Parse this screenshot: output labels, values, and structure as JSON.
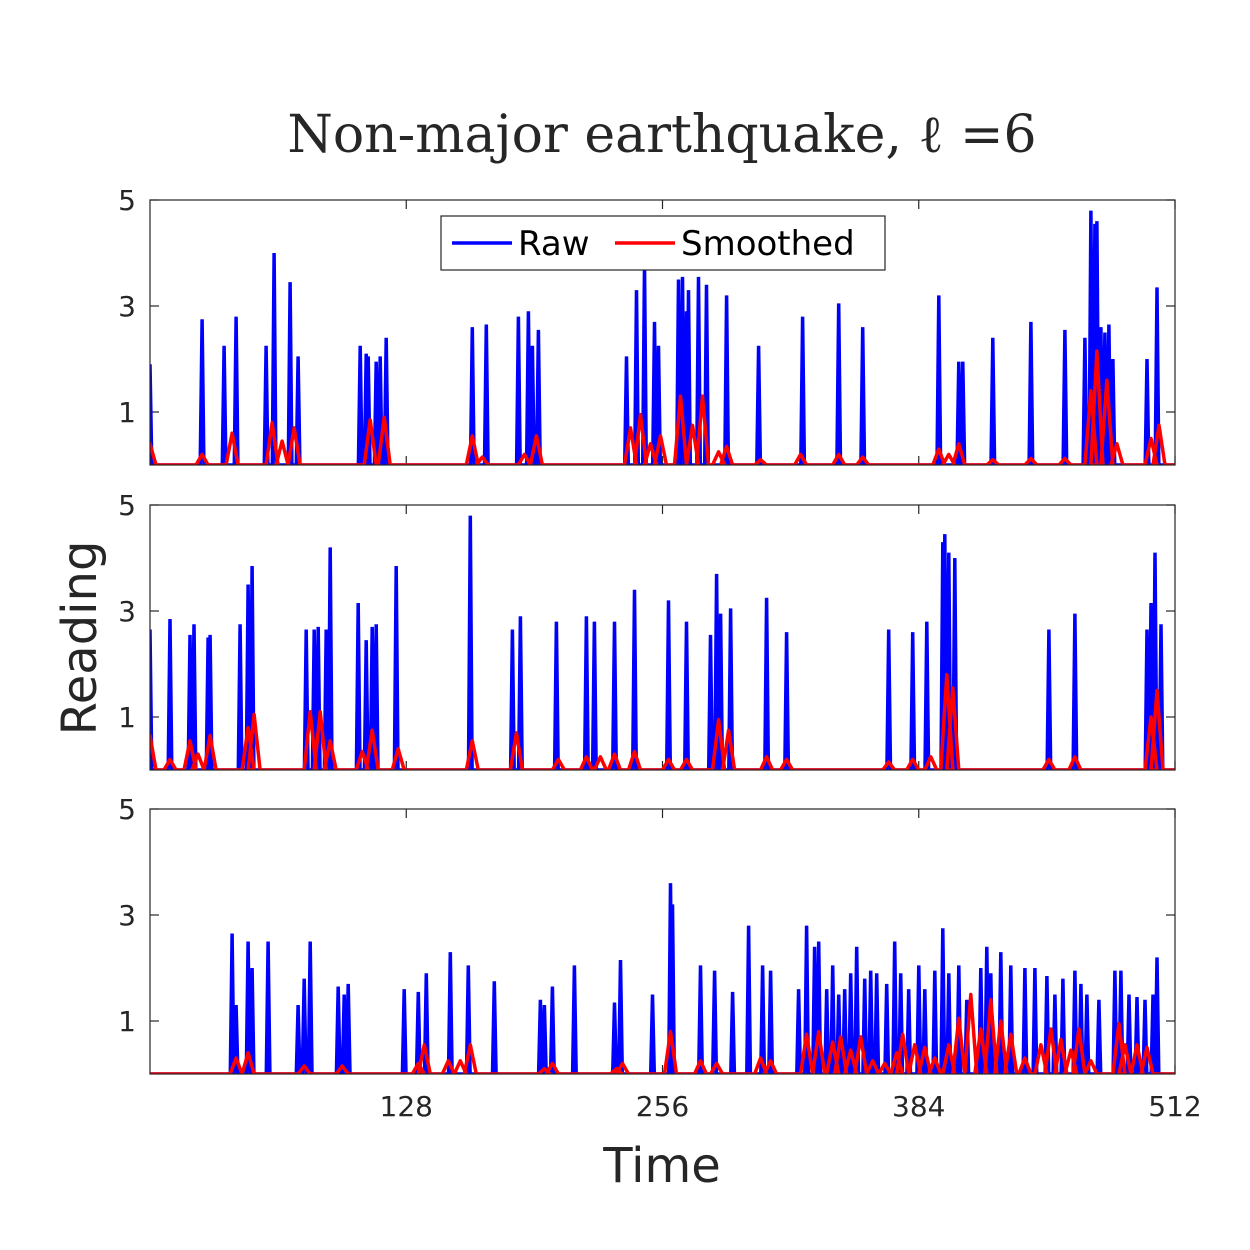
{
  "chart_data": {
    "type": "line",
    "title": "Non-major earthquake, ℓ =6",
    "xlabel": "Time",
    "ylabel": "Reading",
    "xlim": [
      0,
      512
    ],
    "ylim": [
      0,
      5
    ],
    "x_ticks": [
      128,
      256,
      384,
      512
    ],
    "y_ticks": [
      1,
      3,
      5
    ],
    "legend": {
      "placement": "top-center",
      "entries": [
        "Raw",
        "Smoothed"
      ]
    },
    "colors": {
      "Raw": "#0000ff",
      "Smoothed": "#ff0000"
    },
    "subplots": [
      {
        "name": "panel-1",
        "raw_spikes": [
          [
            0,
            1.9
          ],
          [
            26,
            2.75
          ],
          [
            37,
            2.25
          ],
          [
            43,
            2.8
          ],
          [
            58,
            2.25
          ],
          [
            62,
            4.0
          ],
          [
            70,
            3.45
          ],
          [
            74,
            2.05
          ],
          [
            105,
            2.25
          ],
          [
            108,
            2.1
          ],
          [
            109,
            2.05
          ],
          [
            113,
            1.95
          ],
          [
            115,
            2.05
          ],
          [
            118,
            2.4
          ],
          [
            161,
            2.6
          ],
          [
            168,
            2.65
          ],
          [
            184,
            2.8
          ],
          [
            189,
            2.9
          ],
          [
            191,
            2.25
          ],
          [
            194,
            2.55
          ],
          [
            238,
            2.05
          ],
          [
            243,
            3.3
          ],
          [
            247,
            3.8
          ],
          [
            252,
            2.7
          ],
          [
            254,
            2.25
          ],
          [
            264,
            3.5
          ],
          [
            266,
            3.55
          ],
          [
            268,
            2.9
          ],
          [
            269,
            3.3
          ],
          [
            274,
            3.55
          ],
          [
            278,
            3.4
          ],
          [
            288,
            3.2
          ],
          [
            304,
            2.25
          ],
          [
            326,
            2.8
          ],
          [
            344,
            3.05
          ],
          [
            356,
            2.6
          ],
          [
            394,
            3.2
          ],
          [
            404,
            1.95
          ],
          [
            406,
            1.95
          ],
          [
            421,
            2.4
          ],
          [
            440,
            2.7
          ],
          [
            457,
            2.55
          ],
          [
            467,
            2.4
          ],
          [
            470,
            4.8
          ],
          [
            472,
            4.55
          ],
          [
            473,
            4.6
          ],
          [
            475,
            2.6
          ],
          [
            477,
            2.5
          ],
          [
            479,
            2.65
          ],
          [
            481,
            2.0
          ],
          [
            498,
            2.0
          ],
          [
            503,
            3.35
          ]
        ],
        "smoothed_bumps": [
          [
            0,
            0.4
          ],
          [
            26,
            0.2
          ],
          [
            41,
            0.6
          ],
          [
            61,
            0.8
          ],
          [
            66,
            0.45
          ],
          [
            72,
            0.7
          ],
          [
            110,
            0.85
          ],
          [
            117,
            0.9
          ],
          [
            161,
            0.55
          ],
          [
            166,
            0.15
          ],
          [
            187,
            0.2
          ],
          [
            193,
            0.55
          ],
          [
            240,
            0.7
          ],
          [
            245,
            0.95
          ],
          [
            250,
            0.4
          ],
          [
            255,
            0.55
          ],
          [
            265,
            1.3
          ],
          [
            271,
            0.75
          ],
          [
            276,
            1.3
          ],
          [
            284,
            0.25
          ],
          [
            288,
            0.35
          ],
          [
            305,
            0.1
          ],
          [
            325,
            0.2
          ],
          [
            344,
            0.2
          ],
          [
            356,
            0.15
          ],
          [
            394,
            0.3
          ],
          [
            399,
            0.2
          ],
          [
            404,
            0.4
          ],
          [
            421,
            0.1
          ],
          [
            440,
            0.12
          ],
          [
            457,
            0.12
          ],
          [
            470,
            1.4
          ],
          [
            473,
            2.15
          ],
          [
            478,
            1.6
          ],
          [
            483,
            0.4
          ],
          [
            500,
            0.5
          ],
          [
            504,
            0.75
          ]
        ]
      },
      {
        "name": "panel-2",
        "raw_spikes": [
          [
            0,
            2.65
          ],
          [
            10,
            2.85
          ],
          [
            20,
            2.55
          ],
          [
            22,
            2.75
          ],
          [
            29,
            2.5
          ],
          [
            30,
            2.55
          ],
          [
            45,
            2.75
          ],
          [
            49,
            3.5
          ],
          [
            51,
            3.85
          ],
          [
            78,
            2.65
          ],
          [
            82,
            2.65
          ],
          [
            84,
            2.7
          ],
          [
            88,
            2.65
          ],
          [
            90,
            4.2
          ],
          [
            104,
            3.15
          ],
          [
            108,
            2.45
          ],
          [
            111,
            2.7
          ],
          [
            113,
            2.75
          ],
          [
            123,
            3.85
          ],
          [
            160,
            4.8
          ],
          [
            181,
            2.65
          ],
          [
            185,
            2.9
          ],
          [
            203,
            2.8
          ],
          [
            218,
            2.9
          ],
          [
            222,
            2.8
          ],
          [
            232,
            2.8
          ],
          [
            242,
            3.4
          ],
          [
            259,
            3.2
          ],
          [
            268,
            2.8
          ],
          [
            280,
            2.55
          ],
          [
            283,
            3.7
          ],
          [
            285,
            2.95
          ],
          [
            290,
            3.05
          ],
          [
            308,
            3.25
          ],
          [
            318,
            2.6
          ],
          [
            369,
            2.65
          ],
          [
            381,
            2.6
          ],
          [
            388,
            2.8
          ],
          [
            396,
            4.3
          ],
          [
            397,
            4.45
          ],
          [
            399,
            4.1
          ],
          [
            402,
            4.0
          ],
          [
            449,
            2.65
          ],
          [
            462,
            2.95
          ],
          [
            498,
            2.65
          ],
          [
            500,
            3.15
          ],
          [
            502,
            4.1
          ],
          [
            505,
            2.75
          ]
        ],
        "smoothed_bumps": [
          [
            0,
            0.65
          ],
          [
            10,
            0.2
          ],
          [
            20,
            0.55
          ],
          [
            24,
            0.3
          ],
          [
            30,
            0.65
          ],
          [
            49,
            0.8
          ],
          [
            52,
            1.05
          ],
          [
            80,
            1.1
          ],
          [
            85,
            1.1
          ],
          [
            90,
            0.55
          ],
          [
            106,
            0.35
          ],
          [
            111,
            0.75
          ],
          [
            124,
            0.4
          ],
          [
            161,
            0.55
          ],
          [
            183,
            0.7
          ],
          [
            204,
            0.2
          ],
          [
            218,
            0.25
          ],
          [
            225,
            0.25
          ],
          [
            232,
            0.3
          ],
          [
            242,
            0.35
          ],
          [
            259,
            0.2
          ],
          [
            268,
            0.2
          ],
          [
            284,
            0.95
          ],
          [
            289,
            0.75
          ],
          [
            308,
            0.25
          ],
          [
            318,
            0.2
          ],
          [
            369,
            0.15
          ],
          [
            381,
            0.2
          ],
          [
            390,
            0.25
          ],
          [
            398,
            1.8
          ],
          [
            401,
            1.55
          ],
          [
            449,
            0.2
          ],
          [
            462,
            0.25
          ],
          [
            500,
            1.0
          ],
          [
            503,
            1.5
          ]
        ]
      },
      {
        "name": "panel-3",
        "raw_spikes": [
          [
            41,
            2.65
          ],
          [
            43,
            1.3
          ],
          [
            49,
            2.5
          ],
          [
            51,
            2.0
          ],
          [
            59,
            2.5
          ],
          [
            74,
            1.3
          ],
          [
            77,
            1.8
          ],
          [
            80,
            2.5
          ],
          [
            94,
            1.65
          ],
          [
            97,
            1.5
          ],
          [
            99,
            1.7
          ],
          [
            127,
            1.6
          ],
          [
            134,
            1.55
          ],
          [
            138,
            1.9
          ],
          [
            150,
            2.3
          ],
          [
            159,
            2.05
          ],
          [
            172,
            1.75
          ],
          [
            195,
            1.4
          ],
          [
            197,
            1.3
          ],
          [
            201,
            1.65
          ],
          [
            212,
            2.05
          ],
          [
            232,
            1.35
          ],
          [
            235,
            2.15
          ],
          [
            251,
            1.5
          ],
          [
            260,
            3.6
          ],
          [
            261,
            3.2
          ],
          [
            275,
            2.05
          ],
          [
            282,
            1.95
          ],
          [
            291,
            1.55
          ],
          [
            299,
            2.8
          ],
          [
            306,
            2.05
          ],
          [
            310,
            1.95
          ],
          [
            324,
            1.6
          ],
          [
            328,
            2.8
          ],
          [
            332,
            2.4
          ],
          [
            334,
            2.5
          ],
          [
            338,
            1.6
          ],
          [
            341,
            2.05
          ],
          [
            344,
            1.5
          ],
          [
            347,
            1.6
          ],
          [
            350,
            1.9
          ],
          [
            353,
            2.4
          ],
          [
            357,
            1.8
          ],
          [
            360,
            1.95
          ],
          [
            363,
            1.9
          ],
          [
            368,
            1.7
          ],
          [
            372,
            2.5
          ],
          [
            375,
            1.9
          ],
          [
            379,
            1.6
          ],
          [
            384,
            2.05
          ],
          [
            387,
            1.6
          ],
          [
            392,
            1.95
          ],
          [
            396,
            2.75
          ],
          [
            399,
            1.9
          ],
          [
            404,
            2.05
          ],
          [
            408,
            1.4
          ],
          [
            415,
            2.0
          ],
          [
            418,
            2.4
          ],
          [
            420,
            1.9
          ],
          [
            425,
            2.3
          ],
          [
            430,
            2.05
          ],
          [
            437,
            2.0
          ],
          [
            442,
            2.0
          ],
          [
            448,
            1.85
          ],
          [
            452,
            1.5
          ],
          [
            456,
            1.8
          ],
          [
            462,
            1.95
          ],
          [
            465,
            1.7
          ],
          [
            468,
            1.5
          ],
          [
            474,
            1.4
          ],
          [
            482,
            1.95
          ],
          [
            485,
            1.95
          ],
          [
            489,
            1.5
          ],
          [
            493,
            1.45
          ],
          [
            497,
            1.4
          ],
          [
            501,
            1.5
          ],
          [
            503,
            2.2
          ]
        ],
        "smoothed_bumps": [
          [
            43,
            0.3
          ],
          [
            49,
            0.4
          ],
          [
            77,
            0.15
          ],
          [
            96,
            0.15
          ],
          [
            134,
            0.2
          ],
          [
            137,
            0.55
          ],
          [
            149,
            0.25
          ],
          [
            155,
            0.25
          ],
          [
            160,
            0.55
          ],
          [
            197,
            0.1
          ],
          [
            201,
            0.2
          ],
          [
            233,
            0.1
          ],
          [
            236,
            0.2
          ],
          [
            260,
            0.8
          ],
          [
            275,
            0.25
          ],
          [
            283,
            0.2
          ],
          [
            305,
            0.3
          ],
          [
            310,
            0.25
          ],
          [
            328,
            0.75
          ],
          [
            334,
            0.8
          ],
          [
            341,
            0.6
          ],
          [
            345,
            0.7
          ],
          [
            350,
            0.45
          ],
          [
            355,
            0.7
          ],
          [
            361,
            0.25
          ],
          [
            367,
            0.2
          ],
          [
            373,
            0.4
          ],
          [
            376,
            0.75
          ],
          [
            382,
            0.55
          ],
          [
            387,
            0.5
          ],
          [
            392,
            0.3
          ],
          [
            399,
            0.55
          ],
          [
            404,
            1.05
          ],
          [
            410,
            1.5
          ],
          [
            415,
            0.85
          ],
          [
            420,
            1.4
          ],
          [
            425,
            1.0
          ],
          [
            430,
            0.75
          ],
          [
            437,
            0.3
          ],
          [
            445,
            0.55
          ],
          [
            450,
            0.85
          ],
          [
            455,
            0.65
          ],
          [
            460,
            0.45
          ],
          [
            464,
            0.85
          ],
          [
            470,
            0.25
          ],
          [
            484,
            0.95
          ],
          [
            487,
            0.55
          ],
          [
            493,
            0.55
          ],
          [
            498,
            0.5
          ]
        ]
      }
    ]
  }
}
